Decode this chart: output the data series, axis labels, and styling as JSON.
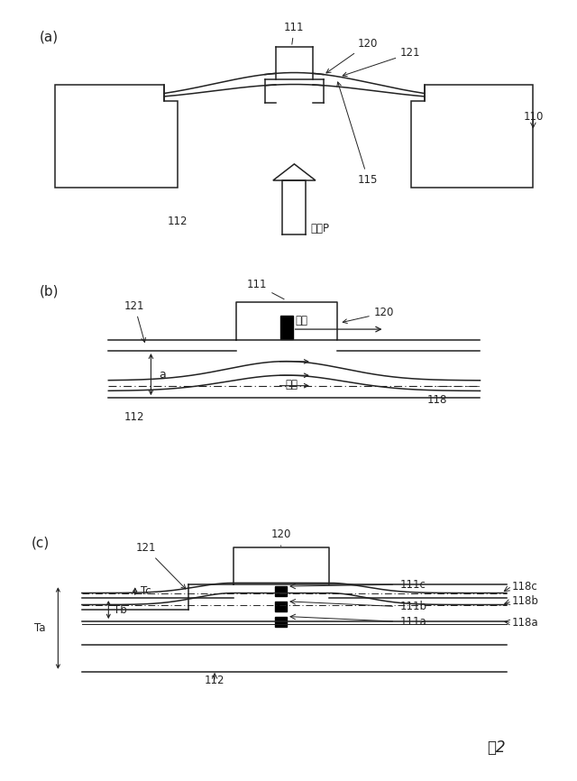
{
  "bg_color": "#ffffff",
  "lc": "#222222",
  "lw": 1.1,
  "fig_width": 6.4,
  "fig_height": 8.66,
  "label_a": "(a)",
  "label_b": "(b)",
  "label_c": "(c)",
  "fig_label": "図2"
}
